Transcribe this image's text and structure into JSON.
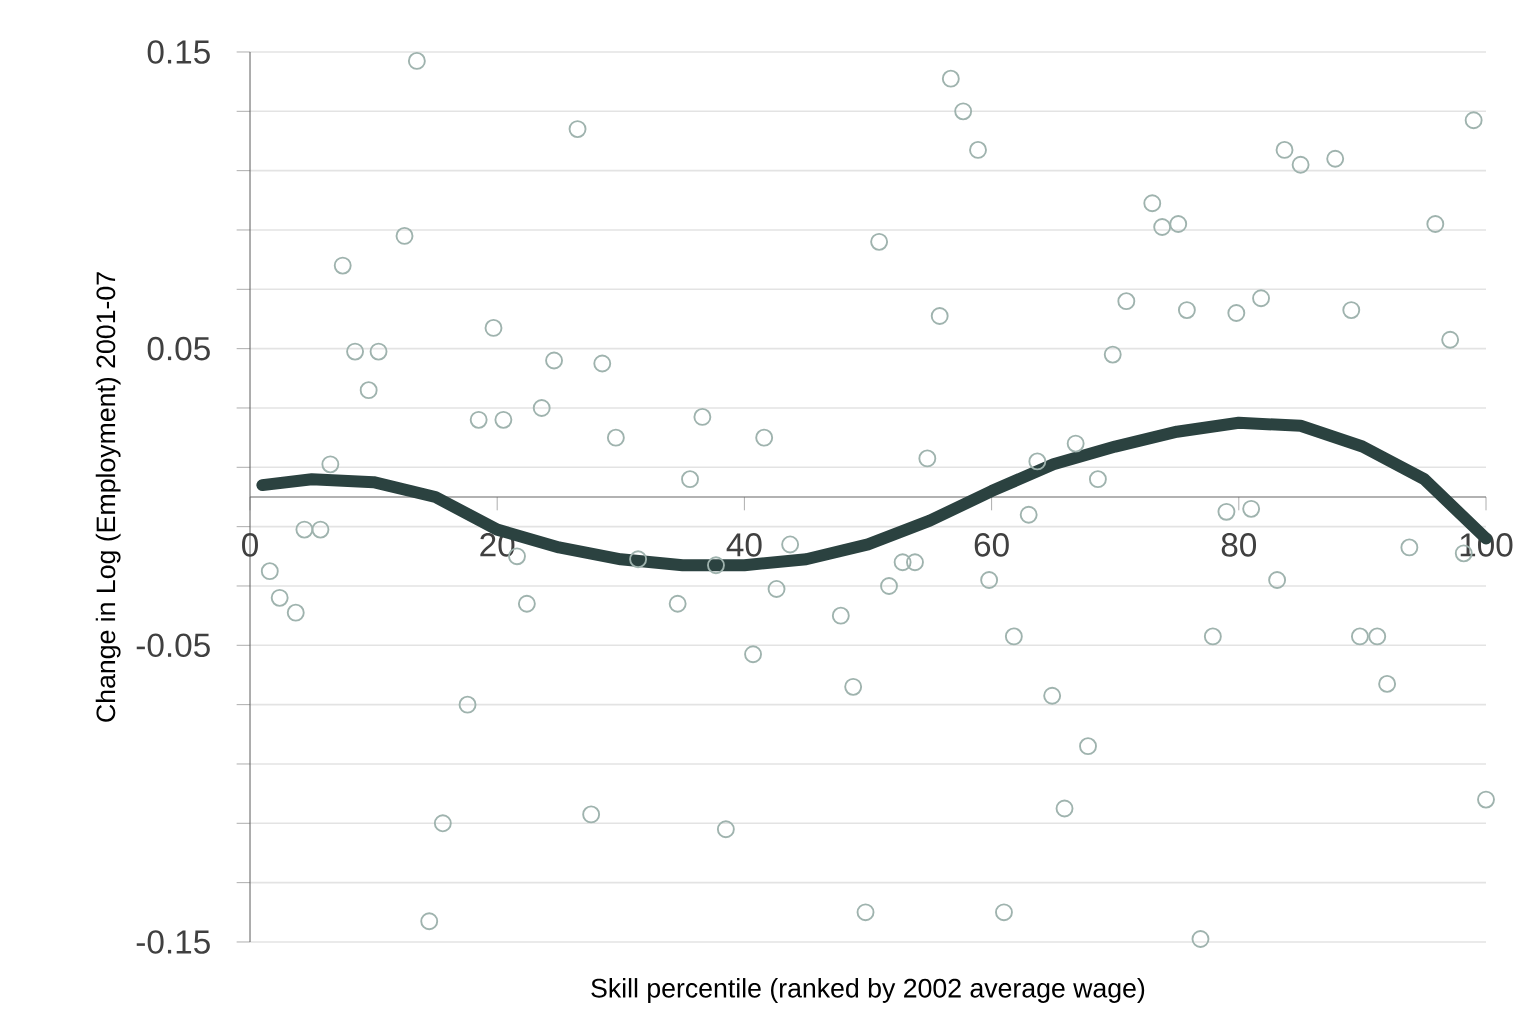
{
  "chart_data": {
    "type": "scatter",
    "xlabel": "Skill percentile (ranked by 2002 average wage)",
    "ylabel": "Change in Log (Employment) 2001-07",
    "xlim": [
      0,
      100
    ],
    "ylim": [
      -0.15,
      0.15
    ],
    "xticks": [
      0,
      20,
      40,
      60,
      80,
      100
    ],
    "yticks": [
      -0.15,
      {
        "value": -0.13,
        "label": null
      },
      {
        "value": -0.11,
        "label": null
      },
      {
        "value": -0.09,
        "label": null
      },
      {
        "value": -0.07,
        "label": null
      },
      -0.05,
      {
        "value": -0.03,
        "label": null
      },
      {
        "value": -0.01,
        "label": null
      },
      {
        "value": 0.01,
        "label": null
      },
      {
        "value": 0.03,
        "label": null
      },
      0.05,
      {
        "value": 0.07,
        "label": null
      },
      {
        "value": 0.09,
        "label": null
      },
      {
        "value": 0.11,
        "label": null
      },
      {
        "value": 0.13,
        "label": null
      },
      0.15
    ],
    "grid": "y",
    "series": [
      {
        "type": "scatter",
        "color": "#9fb3ae",
        "marker": "circle",
        "x": [
          1.6,
          2.4,
          3.7,
          4.4,
          5.7,
          6.5,
          7.5,
          8.5,
          9.6,
          10.4,
          12.5,
          13.5,
          14.5,
          15.6,
          17.6,
          18.5,
          19.7,
          20.5,
          21.6,
          22.4,
          23.6,
          24.6,
          26.5,
          27.6,
          28.5,
          29.6,
          31.4,
          34.6,
          35.6,
          36.6,
          37.7,
          38.5,
          40.7,
          41.6,
          42.6,
          43.7,
          47.8,
          48.8,
          49.8,
          50.9,
          51.7,
          52.8,
          53.8,
          54.8,
          55.8,
          56.7,
          57.7,
          58.9,
          59.8,
          61.0,
          61.8,
          63.0,
          63.7,
          64.9,
          65.9,
          66.8,
          67.8,
          68.6,
          69.8,
          70.9,
          73.0,
          73.8,
          75.1,
          75.8,
          76.9,
          77.9,
          79.0,
          79.8,
          81.0,
          81.8,
          83.1,
          83.7,
          85.0,
          87.8,
          89.1,
          89.8,
          91.2,
          92.0,
          93.8,
          95.9,
          97.1,
          98.2,
          99.0,
          100
        ],
        "values": [
          -0.025,
          -0.034,
          -0.039,
          -0.011,
          -0.011,
          0.011,
          0.078,
          0.049,
          0.036,
          0.049,
          0.088,
          0.147,
          -0.143,
          -0.11,
          -0.07,
          0.026,
          0.057,
          0.026,
          -0.02,
          -0.036,
          0.03,
          0.046,
          0.124,
          -0.107,
          0.045,
          0.02,
          -0.021,
          -0.036,
          0.006,
          0.027,
          -0.023,
          -0.112,
          -0.053,
          0.02,
          -0.031,
          -0.016,
          -0.04,
          -0.064,
          -0.14,
          0.086,
          -0.03,
          -0.022,
          -0.022,
          0.013,
          0.061,
          0.141,
          0.13,
          0.117,
          -0.028,
          -0.14,
          -0.047,
          -0.006,
          0.012,
          -0.067,
          -0.105,
          0.018,
          -0.084,
          0.006,
          0.048,
          0.066,
          0.099,
          0.091,
          0.092,
          0.063,
          -0.149,
          -0.047,
          -0.005,
          0.062,
          -0.004,
          0.067,
          -0.028,
          0.117,
          0.112,
          0.114,
          0.063,
          -0.047,
          -0.047,
          -0.063,
          -0.017,
          0.092,
          0.053,
          -0.019,
          0.127,
          -0.102
        ]
      },
      {
        "type": "line",
        "color": "#2b4240",
        "marker": "none",
        "line_style": "solid",
        "x": [
          1,
          5,
          10,
          15,
          20,
          25,
          30,
          35,
          40,
          45,
          50,
          55,
          60,
          65,
          70,
          75,
          80,
          85,
          90,
          95,
          100
        ],
        "values": [
          0.004,
          0.006,
          0.005,
          0.0,
          -0.011,
          -0.017,
          -0.021,
          -0.023,
          -0.023,
          -0.021,
          -0.016,
          -0.008,
          0.002,
          0.011,
          0.017,
          0.022,
          0.025,
          0.024,
          0.017,
          0.006,
          -0.014
        ]
      }
    ]
  }
}
